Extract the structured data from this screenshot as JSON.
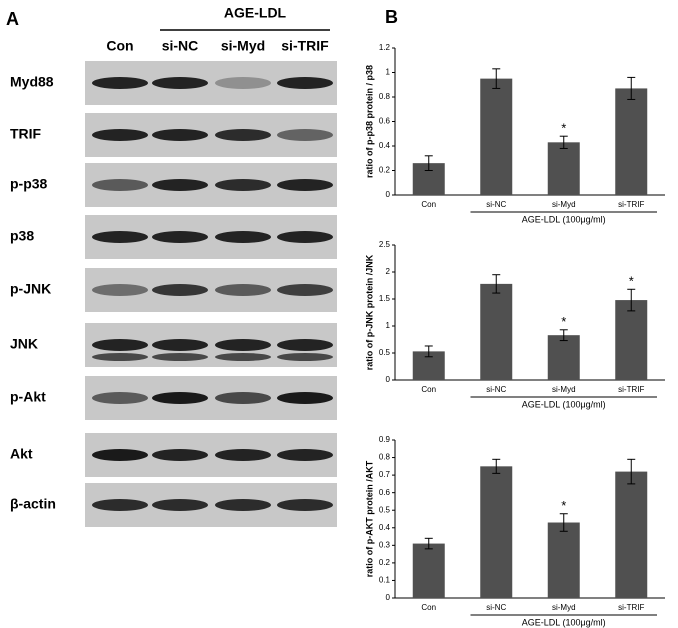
{
  "panel_labels": [
    "A",
    "B"
  ],
  "blot": {
    "header": "AGE-LDL",
    "columns": [
      "Con",
      "si-NC",
      "si-Myd",
      "si-TRIF"
    ],
    "rows": [
      "Myd88",
      "TRIF",
      "p-p38",
      "p38",
      "p-JNK",
      "JNK",
      "p-Akt",
      "Akt",
      "β-actin"
    ]
  },
  "chart_data": [
    {
      "type": "bar",
      "y_label": "ratio of p-p38 protein / p38",
      "categories": [
        "Con",
        "si-NC",
        "si-Myd",
        "si-TRIF"
      ],
      "values": [
        0.26,
        0.95,
        0.43,
        0.87
      ],
      "errors": [
        0.06,
        0.08,
        0.05,
        0.09
      ],
      "color": "#505050",
      "ylim": [
        0,
        1.2
      ],
      "yticks": [
        0,
        0.2,
        0.4,
        0.6,
        0.8,
        1,
        1.2
      ],
      "annotations": [
        {
          "text": "*",
          "category": "si-Myd"
        }
      ],
      "group_label": "AGE-LDL (100μg/ml)"
    },
    {
      "type": "bar",
      "y_label": "ratio of p-JNK protein /JNK",
      "categories": [
        "Con",
        "si-NC",
        "si-Myd",
        "si-TRIF"
      ],
      "values": [
        0.53,
        1.78,
        0.83,
        1.48
      ],
      "errors": [
        0.1,
        0.17,
        0.1,
        0.2
      ],
      "color": "#505050",
      "ylim": [
        0,
        2.5
      ],
      "yticks": [
        0,
        0.5,
        1,
        1.5,
        2,
        2.5
      ],
      "annotations": [
        {
          "text": "*",
          "category": "si-Myd"
        },
        {
          "text": "*",
          "category": "si-TRIF"
        }
      ],
      "group_label": "AGE-LDL (100μg/ml)"
    },
    {
      "type": "bar",
      "y_label": "ratio of p-AKT protein /AKT",
      "categories": [
        "Con",
        "si-NC",
        "si-Myd",
        "si-TRIF"
      ],
      "values": [
        0.31,
        0.75,
        0.43,
        0.72
      ],
      "errors": [
        0.03,
        0.04,
        0.05,
        0.07
      ],
      "color": "#505050",
      "ylim": [
        0,
        0.9
      ],
      "yticks": [
        0,
        0.1,
        0.2,
        0.3,
        0.4,
        0.5,
        0.6,
        0.7,
        0.8,
        0.9
      ],
      "annotations": [
        {
          "text": "*",
          "category": "si-Myd"
        }
      ],
      "group_label": "AGE-LDL (100μg/ml)"
    }
  ]
}
